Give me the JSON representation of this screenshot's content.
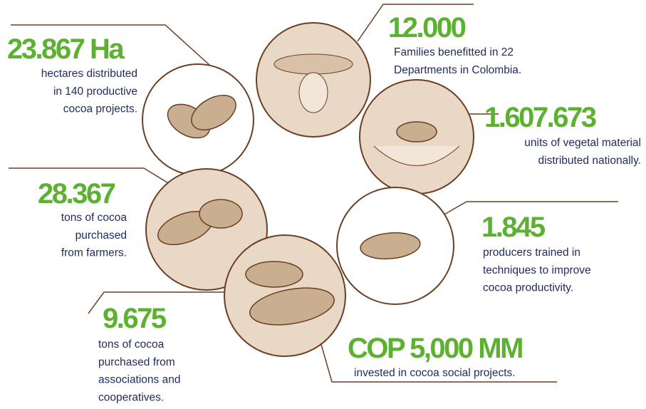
{
  "stats": [
    {
      "value": "23.867 Ha",
      "lines": [
        "hectares distributed",
        "in 140 productive",
        "cocoa projects."
      ]
    },
    {
      "value": "12.000",
      "lines": [
        "Families benefitted in 22",
        "Departments in Colombia."
      ]
    },
    {
      "value": "1.607.673",
      "lines": [
        "units of vegetal material",
        "distributed nationally."
      ]
    },
    {
      "value": "28.367",
      "lines": [
        "tons of cocoa",
        "purchased",
        "from farmers."
      ]
    },
    {
      "value": "1.845",
      "lines": [
        "producers trained in",
        "techniques to improve",
        "cocoa productivity."
      ]
    },
    {
      "value": "9.675",
      "lines": [
        "tons of cocoa",
        "purchased from",
        "associations and",
        "cooperatives."
      ]
    },
    {
      "value": "COP 5,000 MM",
      "lines": [
        "invested in cocoa social projects."
      ]
    }
  ]
}
